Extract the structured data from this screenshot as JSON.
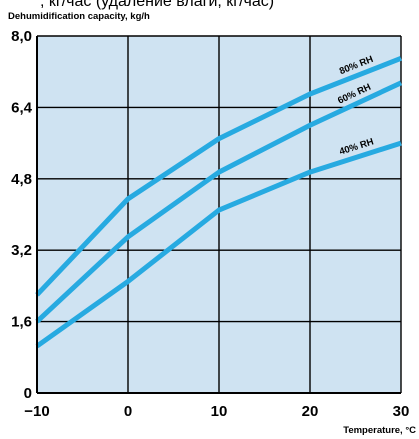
{
  "top_caption": ", кг/час (удаление влаги, кг/час)",
  "chart_data": {
    "type": "line",
    "title": "Dehumidification capacity, kg/h",
    "xlabel": "Temperature, °C",
    "ylabel": "",
    "xlim": [
      -10,
      30
    ],
    "ylim": [
      0,
      8.0
    ],
    "x_ticks": [
      "−10",
      "0",
      "10",
      "20",
      "30"
    ],
    "y_ticks": [
      "0",
      "1,6",
      "3,2",
      "4,8",
      "6,4",
      "8,0"
    ],
    "grid": true,
    "colors": {
      "background": "#cfe3f2",
      "line": "#27aae1",
      "axis": "#000000"
    },
    "series": [
      {
        "name": "80% RH",
        "x": [
          -10,
          0,
          10,
          20,
          30
        ],
        "y": [
          2.2,
          4.35,
          5.7,
          6.7,
          7.5
        ]
      },
      {
        "name": "60% RH",
        "x": [
          -10,
          0,
          10,
          20,
          30
        ],
        "y": [
          1.6,
          3.5,
          4.95,
          6.0,
          6.95
        ]
      },
      {
        "name": "40% RH",
        "x": [
          -10,
          0,
          10,
          20,
          30
        ],
        "y": [
          1.05,
          2.5,
          4.1,
          4.95,
          5.6
        ]
      }
    ]
  }
}
